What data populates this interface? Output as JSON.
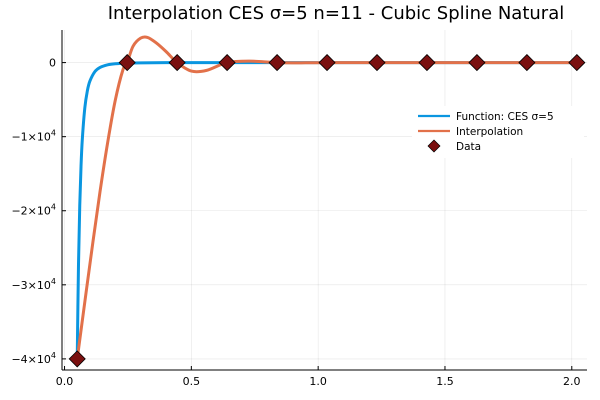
{
  "chart_data": {
    "type": "line",
    "title": "Interpolation CES σ=5 n=11 - Cubic Spline Natural",
    "xlabel": "",
    "ylabel": "",
    "xlim": [
      -0.01,
      2.06
    ],
    "ylim": [
      -41500,
      4400
    ],
    "grid": true,
    "legend_position": "right",
    "x_ticks": [
      {
        "value": 0.0,
        "label": "0.0"
      },
      {
        "value": 0.5,
        "label": "0.5"
      },
      {
        "value": 1.0,
        "label": "1.0"
      },
      {
        "value": 1.5,
        "label": "1.5"
      },
      {
        "value": 2.0,
        "label": "2.0"
      }
    ],
    "y_ticks": [
      {
        "value": 0,
        "mantissa": "0",
        "exponent": ""
      },
      {
        "value": -10000,
        "mantissa": "−1×10",
        "exponent": "4"
      },
      {
        "value": -20000,
        "mantissa": "−2×10",
        "exponent": "4"
      },
      {
        "value": -30000,
        "mantissa": "−3×10",
        "exponent": "4"
      },
      {
        "value": -40000,
        "mantissa": "−4×10",
        "exponent": "4"
      }
    ],
    "series": [
      {
        "name": "Function: CES σ=5",
        "color": "#0a96e0",
        "kind": "line",
        "x": [
          0.05,
          0.055,
          0.06,
          0.065,
          0.07,
          0.08,
          0.09,
          0.1,
          0.12,
          0.14,
          0.17,
          0.2,
          0.25,
          0.3,
          0.4,
          0.6,
          1.0,
          1.5,
          2.0
        ],
        "y": [
          -40000,
          -27300,
          -19300,
          -14000,
          -10400,
          -6100,
          -3810,
          -2500,
          -1206,
          -651,
          -300,
          -156,
          -64,
          -31,
          -10,
          -2,
          0,
          0,
          0
        ]
      },
      {
        "name": "Interpolation",
        "color": "#e2714a",
        "kind": "line",
        "x": [
          0.05,
          0.08,
          0.11,
          0.14,
          0.17,
          0.2,
          0.23,
          0.247,
          0.27,
          0.3,
          0.327,
          0.36,
          0.4,
          0.444,
          0.5,
          0.56,
          0.641,
          0.73,
          0.838,
          0.95,
          1.035,
          1.23,
          1.427,
          1.624,
          1.82,
          2.0
        ],
        "y": [
          -40000,
          -32300,
          -24700,
          -17400,
          -10800,
          -5100,
          -1000,
          0,
          2200,
          3300,
          3400,
          2700,
          1500,
          0,
          -1150,
          -1050,
          0,
          200,
          0,
          -30,
          0,
          0,
          0,
          0,
          0,
          0
        ]
      },
      {
        "name": "Data",
        "color": "#7a1010",
        "kind": "markers",
        "x": [
          0.05,
          0.247,
          0.444,
          0.641,
          0.838,
          1.035,
          1.232,
          1.429,
          1.626,
          1.823,
          2.02
        ],
        "y": [
          -40000,
          0,
          0,
          0,
          0,
          0,
          0,
          0,
          0,
          0,
          0
        ]
      }
    ]
  }
}
